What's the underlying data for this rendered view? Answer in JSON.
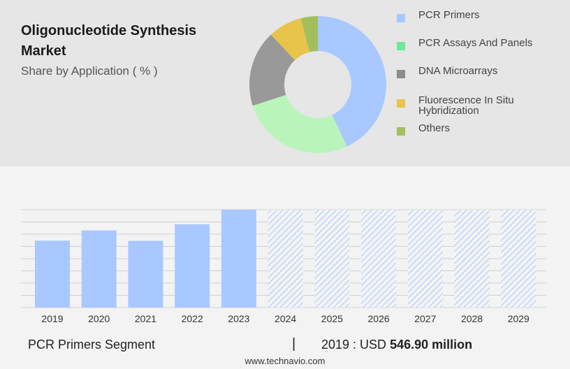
{
  "header": {
    "title": "Oligonucleotide Synthesis Market",
    "subtitle": "Share by Application ( % )"
  },
  "chart_data": [
    {
      "type": "pie",
      "subtype": "donut",
      "legend_position": "right",
      "slices": [
        {
          "label": "PCR Primers",
          "value": 43,
          "color": "#a8c8ff"
        },
        {
          "label": "PCR Assays And Panels",
          "value": 27,
          "color": "#b9f5bb"
        },
        {
          "label": "DNA Microarrays",
          "value": 18,
          "color": "#999999"
        },
        {
          "label": "Fluorescence In Situ Hybridization",
          "value": 8,
          "color": "#e8c44a"
        },
        {
          "label": "Others",
          "value": 4,
          "color": "#a3bf5c"
        }
      ],
      "legend_colors": [
        "#a8c8ff",
        "#6ee89a",
        "#8c8c8c",
        "#e8c44a",
        "#a3bf5c"
      ]
    },
    {
      "type": "bar",
      "categories": [
        "2019",
        "2020",
        "2021",
        "2022",
        "2023",
        "2024",
        "2025",
        "2026",
        "2027",
        "2028",
        "2029"
      ],
      "values": [
        546.9,
        630,
        545,
        680,
        800,
        null,
        null,
        null,
        null,
        null,
        null
      ],
      "forecast_categories": [
        "2024",
        "2025",
        "2026",
        "2027",
        "2028",
        "2029"
      ],
      "forecast_fill": "hatched",
      "bar_color": "#a8c8ff",
      "ylim": [
        0,
        800
      ],
      "grid": true,
      "y_tick_labels_shown": false
    }
  ],
  "footer": {
    "segment_label": "PCR Primers Segment",
    "separator": "|",
    "year_label": "2019 : USD",
    "value_label": "546.90 million",
    "website": "www.technavio.com"
  }
}
